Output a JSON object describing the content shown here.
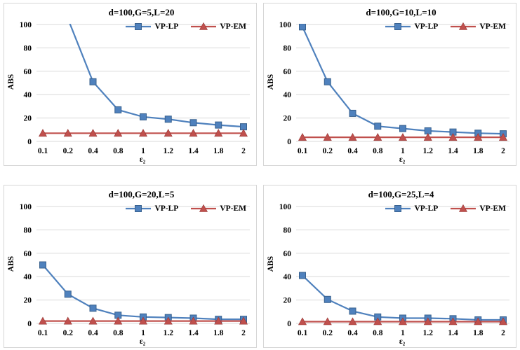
{
  "figure": {
    "background": "#ffffff",
    "panel_border_color": "#d6d6d6",
    "gridline_color": "#d9d9d9",
    "text_color": "#000000"
  },
  "chart_data": [
    {
      "type": "line",
      "title": "d=100,G=5,L=20",
      "xlabel": "ε₂",
      "ylabel": "ABS",
      "categories": [
        "0.1",
        "0.2",
        "0.4",
        "0.8",
        "1",
        "1.2",
        "1.4",
        "1.8",
        "2"
      ],
      "y_ticks": [
        0,
        20,
        40,
        60,
        80,
        100
      ],
      "ylim": [
        0,
        100
      ],
      "grid": "horizontal",
      "legend_position": "top-right",
      "series": [
        {
          "name": "VP-LP",
          "color": "#4F81BD",
          "edge": "#38618E",
          "marker": "square",
          "values": [
            null,
            105,
            51,
            27,
            21,
            19,
            16,
            14,
            12.5
          ],
          "clipped_above_max": true
        },
        {
          "name": "VP-EM",
          "color": "#C0504D",
          "edge": "#953735",
          "marker": "triangle",
          "values": [
            7,
            7,
            7,
            7,
            7,
            7,
            7,
            7,
            7
          ]
        }
      ]
    },
    {
      "type": "line",
      "title": "d=100,G=10,L=10",
      "xlabel": "ε₂",
      "ylabel": "ABS",
      "categories": [
        "0.1",
        "0.2",
        "0.4",
        "0.8",
        "1",
        "1.2",
        "1.4",
        "1.8",
        "2"
      ],
      "y_ticks": [
        0,
        20,
        40,
        60,
        80,
        100
      ],
      "ylim": [
        0,
        100
      ],
      "grid": "horizontal",
      "legend_position": "top-right",
      "series": [
        {
          "name": "VP-LP",
          "color": "#4F81BD",
          "edge": "#38618E",
          "marker": "square",
          "values": [
            98,
            51,
            24,
            13,
            11,
            9,
            8,
            7,
            6.5
          ]
        },
        {
          "name": "VP-EM",
          "color": "#C0504D",
          "edge": "#953735",
          "marker": "triangle",
          "values": [
            3.5,
            3.5,
            3.5,
            3.5,
            3.5,
            3.5,
            3.5,
            3.5,
            3.5
          ]
        }
      ]
    },
    {
      "type": "line",
      "title": "d=100,G=20,L=5",
      "xlabel": "ε₂",
      "ylabel": "ABS",
      "categories": [
        "0.1",
        "0.2",
        "0.4",
        "0.8",
        "1",
        "1.2",
        "1.4",
        "1.8",
        "2"
      ],
      "y_ticks": [
        0,
        20,
        40,
        60,
        80,
        100
      ],
      "ylim": [
        0,
        100
      ],
      "grid": "horizontal",
      "legend_position": "top-right",
      "series": [
        {
          "name": "VP-LP",
          "color": "#4F81BD",
          "edge": "#38618E",
          "marker": "square",
          "values": [
            50,
            25,
            13,
            7,
            5.5,
            5,
            4.5,
            3.5,
            3.5
          ]
        },
        {
          "name": "VP-EM",
          "color": "#C0504D",
          "edge": "#953735",
          "marker": "triangle",
          "values": [
            2,
            2,
            2,
            2,
            2,
            2,
            2,
            2,
            2
          ]
        }
      ]
    },
    {
      "type": "line",
      "title": "d=100,G=25,L=4",
      "xlabel": "ε₂",
      "ylabel": "ABS",
      "categories": [
        "0.1",
        "0.2",
        "0.4",
        "0.8",
        "1",
        "1.2",
        "1.4",
        "1.8",
        "2"
      ],
      "y_ticks": [
        0,
        20,
        40,
        60,
        80,
        100
      ],
      "ylim": [
        0,
        100
      ],
      "grid": "horizontal",
      "legend_position": "top-right",
      "series": [
        {
          "name": "VP-LP",
          "color": "#4F81BD",
          "edge": "#38618E",
          "marker": "square",
          "values": [
            41,
            20.5,
            10.5,
            5.5,
            4.5,
            4.5,
            4,
            3,
            3
          ]
        },
        {
          "name": "VP-EM",
          "color": "#C0504D",
          "edge": "#953735",
          "marker": "triangle",
          "values": [
            1.5,
            1.5,
            1.5,
            1.5,
            1.5,
            1.5,
            1.5,
            1.5,
            1.5
          ]
        }
      ]
    }
  ]
}
